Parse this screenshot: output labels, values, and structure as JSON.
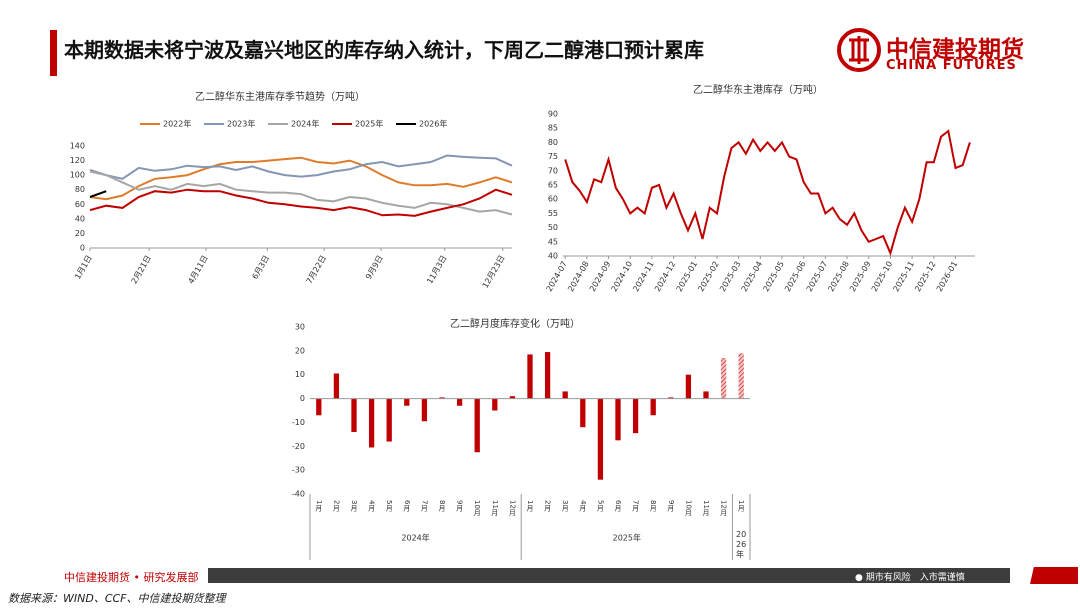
{
  "header": {
    "title": "本期数据未将宁波及嘉兴地区的库存纳入统计，下周乙二醇港口预计累库"
  },
  "logo": {
    "cn": "中信建投期货",
    "en": "CHINA FUTURES"
  },
  "chart_data": [
    {
      "type": "line",
      "title": "乙二醇华东主港库存季节趋势（万吨）",
      "x": [
        0,
        14,
        28,
        42,
        56,
        70,
        84,
        98,
        112,
        126,
        140,
        154,
        168,
        182,
        196,
        210,
        224,
        238,
        252,
        266,
        280,
        294,
        308,
        322,
        336,
        350,
        364
      ],
      "xlim": [
        0,
        364
      ],
      "xticks": [
        {
          "value": 0,
          "label": "1月1日"
        },
        {
          "value": 51,
          "label": "2月21日"
        },
        {
          "value": 100,
          "label": "4月11日"
        },
        {
          "value": 153,
          "label": "6月3日"
        },
        {
          "value": 202,
          "label": "7月22日"
        },
        {
          "value": 251,
          "label": "9月9日"
        },
        {
          "value": 306,
          "label": "11月3日"
        },
        {
          "value": 356,
          "label": "12月23日"
        }
      ],
      "ylim": [
        0,
        140
      ],
      "yticks": [
        0,
        20,
        40,
        60,
        80,
        100,
        120,
        140
      ],
      "series": [
        {
          "name": "2022年",
          "color": "#e07b2a",
          "values": [
            70,
            67,
            72,
            85,
            95,
            97,
            100,
            108,
            115,
            118,
            118,
            120,
            122,
            124,
            118,
            116,
            120,
            112,
            100,
            90,
            86,
            86,
            88,
            84,
            90,
            97,
            90
          ]
        },
        {
          "name": "2023年",
          "color": "#8496b4",
          "values": [
            107,
            100,
            95,
            110,
            106,
            108,
            113,
            111,
            112,
            107,
            112,
            105,
            100,
            98,
            100,
            105,
            108,
            115,
            118,
            112,
            115,
            118,
            127,
            125,
            124,
            123,
            113
          ]
        },
        {
          "name": "2024年",
          "color": "#a6a6a6",
          "values": [
            105,
            100,
            90,
            80,
            85,
            80,
            88,
            85,
            88,
            80,
            78,
            76,
            76,
            74,
            66,
            64,
            70,
            68,
            62,
            58,
            55,
            62,
            60,
            55,
            50,
            52,
            46
          ]
        },
        {
          "name": "2025年",
          "color": "#c00000",
          "values": [
            52,
            58,
            55,
            70,
            78,
            76,
            80,
            78,
            78,
            72,
            68,
            62,
            60,
            57,
            55,
            52,
            56,
            52,
            45,
            46,
            44,
            50,
            55,
            60,
            68,
            80,
            73
          ]
        },
        {
          "name": "2026年",
          "color": "#000000",
          "values": [
            70,
            78,
            null,
            null,
            null,
            null,
            null,
            null,
            null,
            null,
            null,
            null,
            null,
            null,
            null,
            null,
            null,
            null,
            null,
            null,
            null,
            null,
            null,
            null,
            null,
            null,
            null
          ]
        }
      ]
    },
    {
      "type": "line",
      "title": "乙二醇华东主港库存（万吨）",
      "categories": [
        "2024-07",
        null,
        null,
        "2024-08",
        null,
        null,
        "2024-09",
        null,
        null,
        "2024-10",
        null,
        null,
        "2024-11",
        null,
        null,
        "2024-12",
        null,
        null,
        "2025-01",
        null,
        null,
        "2025-02",
        null,
        null,
        "2025-03",
        null,
        null,
        "2025-04",
        null,
        null,
        "2025-05",
        null,
        null,
        "2025-06",
        null,
        null,
        "2025-07",
        null,
        null,
        "2025-08",
        null,
        null,
        "2025-09",
        null,
        null,
        "2025-10",
        null,
        null,
        "2025-11",
        null,
        null,
        "2025-12",
        null,
        null,
        "2026-01",
        null,
        null
      ],
      "ylim": [
        40,
        90
      ],
      "yticks": [
        40,
        45,
        50,
        55,
        60,
        65,
        70,
        75,
        80,
        85,
        90
      ],
      "series": [
        {
          "name": "乙二醇华东主港库存",
          "color": "#c00000",
          "values": [
            74,
            66,
            63,
            59,
            67,
            66,
            74,
            64,
            60,
            55,
            57,
            55,
            64,
            65,
            57,
            62,
            55,
            49,
            55,
            46,
            57,
            55,
            68,
            78,
            80,
            76,
            81,
            77,
            80,
            77,
            80,
            75,
            74,
            66,
            62,
            62,
            55,
            57,
            53,
            51,
            55,
            49,
            45,
            46,
            47,
            41,
            50,
            57,
            52,
            60,
            73,
            73,
            82,
            84,
            71,
            72,
            80
          ]
        }
      ]
    },
    {
      "type": "bar",
      "title": "乙二醇月度库存变化（万吨）",
      "color": "#c00000",
      "ylim": [
        -40,
        30
      ],
      "yticks": [
        -40,
        -30,
        -20,
        -10,
        0,
        10,
        20,
        30
      ],
      "groups": [
        {
          "name": "2024年",
          "categories": [
            "1月",
            "2月",
            "3月",
            "4月",
            "5月",
            "6月",
            "7月",
            "8月",
            "9月",
            "10月",
            "11月",
            "12月"
          ],
          "values": [
            -7,
            10.5,
            -14,
            -20.5,
            -18,
            -3,
            -9.5,
            0.5,
            -3,
            -22.5,
            -5,
            1
          ],
          "patterns": [
            "solid",
            "solid",
            "solid",
            "solid",
            "solid",
            "solid",
            "solid",
            "solid",
            "solid",
            "solid",
            "solid",
            "solid"
          ]
        },
        {
          "name": "2025年",
          "categories": [
            "1月",
            "2月",
            "3月",
            "4月",
            "5月",
            "6月",
            "7月",
            "8月",
            "9月",
            "10月",
            "11月",
            "12月"
          ],
          "values": [
            18.5,
            19.5,
            3,
            -12,
            -34,
            -17.5,
            -14.5,
            -7,
            0.5,
            10,
            3,
            17
          ],
          "patterns": [
            "solid",
            "solid",
            "solid",
            "solid",
            "solid",
            "solid",
            "solid",
            "solid",
            "solid",
            "solid",
            "solid",
            "hatched"
          ]
        },
        {
          "name": "2026年",
          "categories": [
            "1月"
          ],
          "values": [
            19
          ],
          "patterns": [
            "hatched"
          ]
        }
      ]
    }
  ],
  "footer": {
    "org": "中信建投期货 • 研究发展部",
    "risk": "● 期市有风险　入市需谨慎",
    "source": "数据来源：WIND、CCF、中信建投期货整理"
  }
}
